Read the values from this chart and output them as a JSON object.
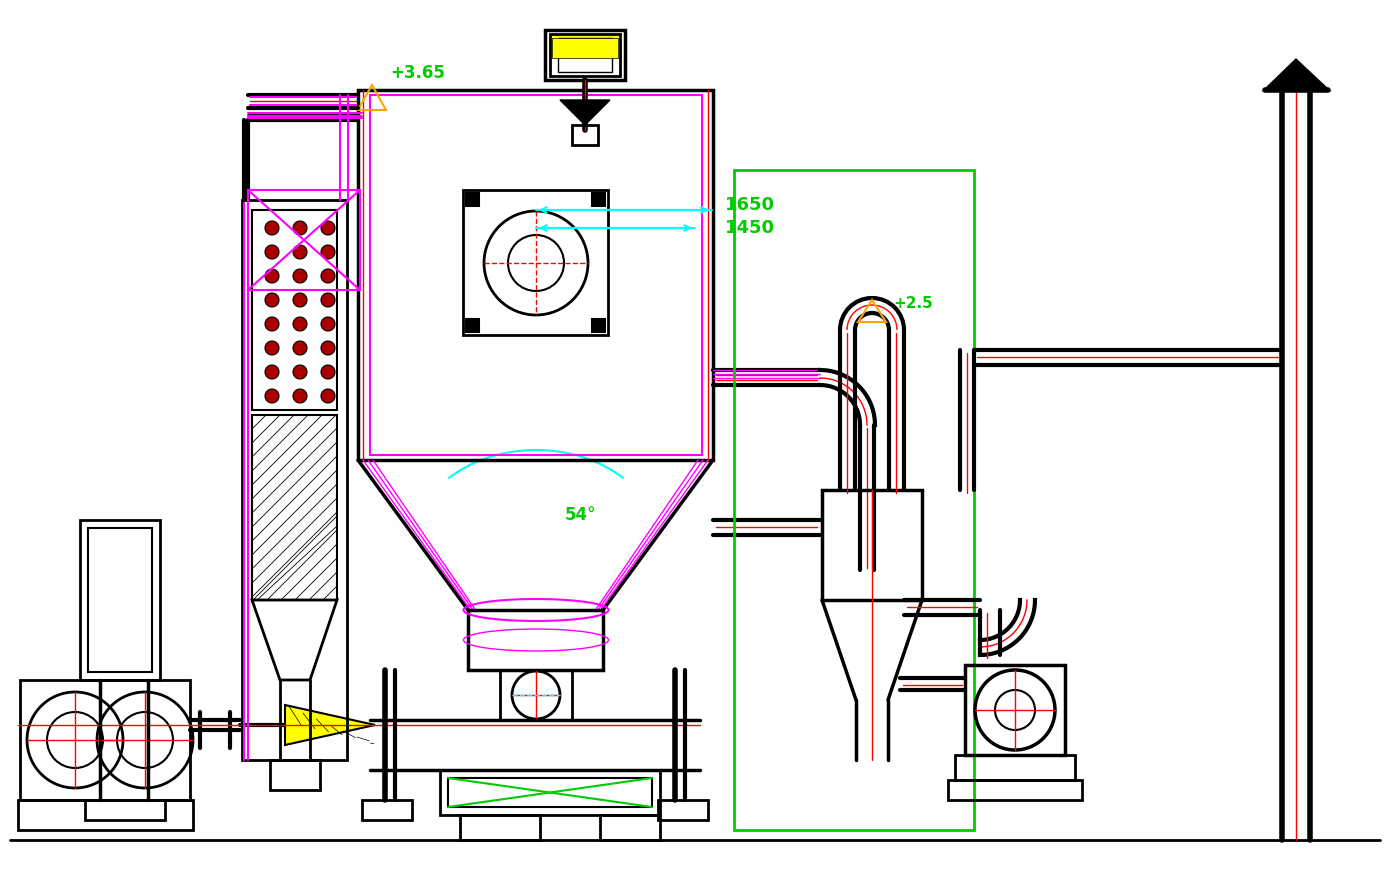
{
  "bg_color": "#ffffff",
  "colors": {
    "black": "#000000",
    "red": "#ff0000",
    "magenta": "#ff00ff",
    "cyan": "#00ffff",
    "green": "#00cc00",
    "orange": "#ffa500",
    "yellow": "#ffff00",
    "dark_red": "#aa0000",
    "teal": "#008b8b"
  },
  "annotations": {
    "label_365": "+3.65",
    "label_25": "+2.5",
    "label_1650": "1650",
    "label_1450": "1450",
    "label_54": "54°"
  }
}
